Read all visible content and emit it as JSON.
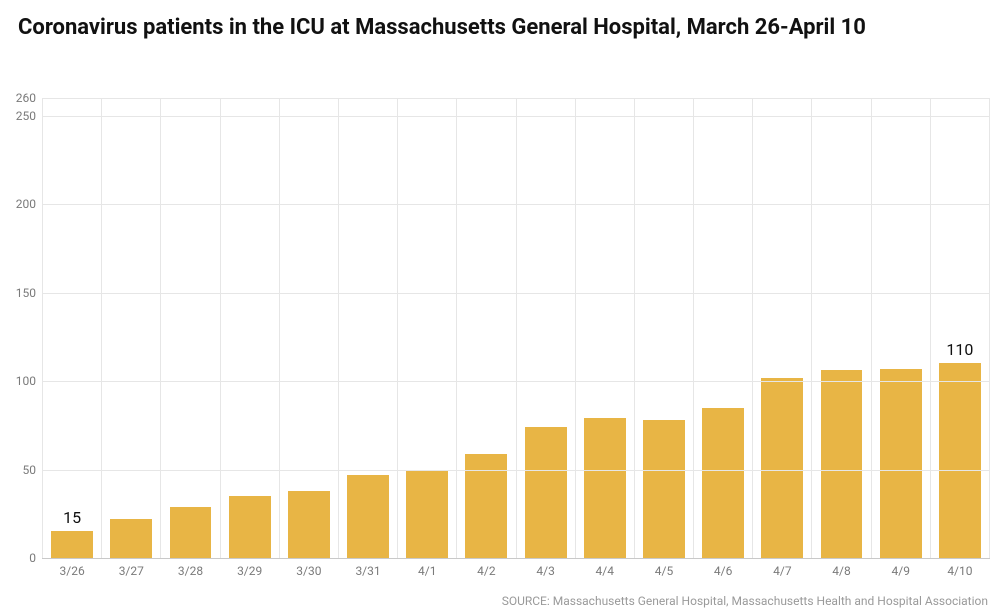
{
  "title": "Coronavirus patients in the ICU at Massachusetts General Hospital, March 26-April 10",
  "title_fontsize": 22,
  "source": "SOURCE: Massachusetts General Hospital, Massachusetts Health and Hospital Association",
  "chart": {
    "type": "bar",
    "categories": [
      "3/26",
      "3/27",
      "3/28",
      "3/29",
      "3/30",
      "3/31",
      "4/1",
      "4/2",
      "4/3",
      "4/4",
      "4/5",
      "4/6",
      "4/7",
      "4/8",
      "4/9",
      "4/10"
    ],
    "values": [
      15,
      22,
      29,
      35,
      38,
      47,
      49,
      59,
      74,
      79,
      78,
      85,
      102,
      106,
      107,
      110
    ],
    "value_labels": {
      "0": "15",
      "15": "110"
    },
    "bar_color": "#e8b545",
    "bar_width": 0.72,
    "ylim": [
      0,
      260
    ],
    "y_ticks": [
      0,
      50,
      100,
      150,
      200,
      250,
      260
    ],
    "background_color": "#ffffff",
    "grid_color": "#e6e6e6",
    "baseline_color": "#c9c9c9",
    "axis_label_color": "#7a7a7a",
    "axis_label_fontsize": 12,
    "value_label_fontsize": 16,
    "value_label_color": "#111111",
    "source_color": "#9a9a9a",
    "source_fontsize": 12
  }
}
